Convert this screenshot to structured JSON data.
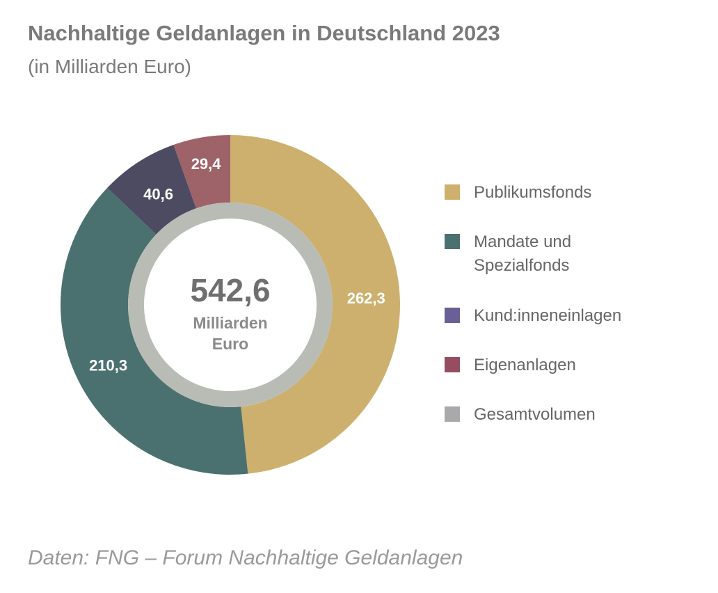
{
  "chart_data": {
    "type": "pie",
    "title": "Nachhaltige Geldanlagen in Deutschland 2023",
    "subtitle": "(in Milliarden Euro)",
    "total": {
      "value_label": "542,6",
      "unit_lines": [
        "Milliarden",
        "Euro"
      ],
      "color": "#b8bcb4"
    },
    "slices": [
      {
        "name": "Publikumsfonds",
        "value": 262.3,
        "label": "262,3",
        "color": "#cdb06e"
      },
      {
        "name": "Mandate und Spezialfonds",
        "value": 210.3,
        "label": "210,3",
        "color": "#4a7170"
      },
      {
        "name": "Kund:inneneinlagen",
        "value": 40.6,
        "label": "40,6",
        "color": "#4d4b62"
      },
      {
        "name": "Eigenanlagen",
        "value": 29.4,
        "label": "29,4",
        "color": "#9e6269"
      }
    ],
    "legend": {
      "placement": "right",
      "items": [
        {
          "lines": [
            "Publikumsfonds"
          ],
          "color": "#cdb06e"
        },
        {
          "lines": [
            "Mandate und",
            "Spezialfonds"
          ],
          "color": "#4a7170"
        },
        {
          "lines": [
            "Kund:inneneinlagen"
          ],
          "color": "#6a5f96"
        },
        {
          "lines": [
            "Eigenanlagen"
          ],
          "color": "#954e60"
        },
        {
          "lines": [
            "Gesamtvolumen"
          ],
          "color": "#a9a9ab"
        }
      ]
    }
  },
  "source": "Daten: FNG – Forum Nachhaltige Geldanlagen"
}
